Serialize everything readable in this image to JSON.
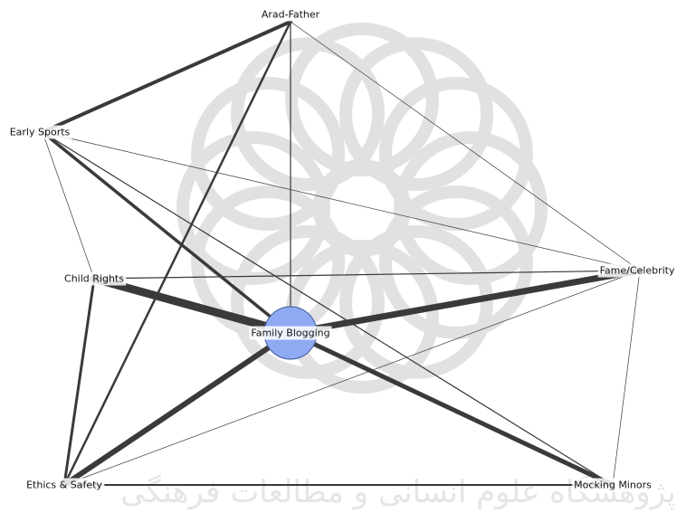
{
  "graph": {
    "nodes": [
      {
        "id": "arad_father",
        "label": "Arad-Father",
        "marker": false
      },
      {
        "id": "early_sports",
        "label": "Early Sports",
        "marker": false
      },
      {
        "id": "child_rights",
        "label": "Child Rights",
        "marker": false
      },
      {
        "id": "fame_celebrity",
        "label": "Fame/Celebrity",
        "marker": false
      },
      {
        "id": "family_blogging",
        "label": "Family Blogging",
        "marker": true
      },
      {
        "id": "ethics_safety",
        "label": "Ethics & Safety",
        "marker": false
      },
      {
        "id": "mocking_minors",
        "label": "Mocking Minors",
        "marker": false
      }
    ],
    "edges": [
      {
        "source": "arad_father",
        "target": "early_sports",
        "weight": 4
      },
      {
        "source": "arad_father",
        "target": "family_blogging",
        "weight": 1.2
      },
      {
        "source": "arad_father",
        "target": "fame_celebrity",
        "weight": 0.7
      },
      {
        "source": "arad_father",
        "target": "ethics_safety",
        "weight": 2.5
      },
      {
        "source": "early_sports",
        "target": "child_rights",
        "weight": 0.7
      },
      {
        "source": "early_sports",
        "target": "family_blogging",
        "weight": 3.5
      },
      {
        "source": "early_sports",
        "target": "mocking_minors",
        "weight": 1.2
      },
      {
        "source": "early_sports",
        "target": "fame_celebrity",
        "weight": 0.7
      },
      {
        "source": "child_rights",
        "target": "family_blogging",
        "weight": 9
      },
      {
        "source": "child_rights",
        "target": "fame_celebrity",
        "weight": 1.2
      },
      {
        "source": "child_rights",
        "target": "ethics_safety",
        "weight": 3
      },
      {
        "source": "fame_celebrity",
        "target": "family_blogging",
        "weight": 7
      },
      {
        "source": "fame_celebrity",
        "target": "ethics_safety",
        "weight": 0.7
      },
      {
        "source": "fame_celebrity",
        "target": "mocking_minors",
        "weight": 0.7
      },
      {
        "source": "family_blogging",
        "target": "ethics_safety",
        "weight": 6
      },
      {
        "source": "family_blogging",
        "target": "mocking_minors",
        "weight": 5
      },
      {
        "source": "ethics_safety",
        "target": "mocking_minors",
        "weight": 2
      }
    ]
  },
  "watermark": {
    "text": "پژوهشگاه علوم انسانی و مطالعات فرهنگی"
  }
}
